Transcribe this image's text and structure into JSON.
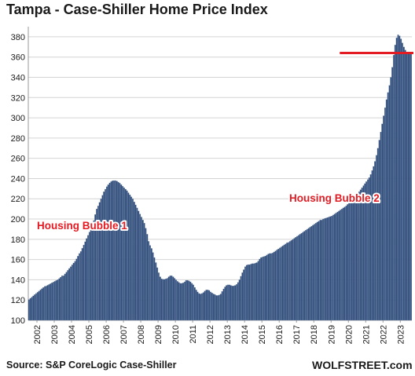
{
  "colors": {
    "bar": "#2d4a78",
    "bar_edge": "#7f95b5",
    "grid": "#d4d4d4",
    "marker_line": "#e31b23",
    "annotation_text": "#e31b23",
    "text": "#1a1a1a"
  },
  "chart_data": {
    "type": "bar",
    "title": "Tampa - Case-Shiller Home Price Index",
    "frequency": "monthly",
    "series_start": "2002-01",
    "ylim": [
      100,
      390
    ],
    "yticks": [
      100,
      120,
      140,
      160,
      180,
      200,
      220,
      240,
      260,
      280,
      300,
      320,
      340,
      360,
      380
    ],
    "xticks": [
      "2002",
      "2003",
      "2004",
      "2005",
      "2006",
      "2007",
      "2008",
      "2009",
      "2010",
      "2011",
      "2012",
      "2013",
      "2014",
      "2015",
      "2016",
      "2017",
      "2018",
      "2019",
      "2020",
      "2021",
      "2022",
      "2023"
    ],
    "grid": true,
    "values": [
      120.5,
      121.7,
      122.9,
      124.1,
      125.3,
      126.5,
      127.7,
      128.9,
      130.1,
      131.3,
      132.4,
      133.5,
      133.8,
      134.6,
      135.4,
      136.2,
      137.0,
      137.8,
      138.6,
      139.4,
      140.2,
      141.2,
      142.6,
      144.0,
      144.0,
      145.8,
      147.6,
      149.4,
      151.2,
      153.0,
      154.8,
      156.6,
      158.4,
      160.7,
      163.4,
      166.0,
      168.0,
      171.2,
      174.4,
      177.6,
      180.8,
      184.0,
      187.2,
      190.4,
      193.6,
      198.5,
      204.5,
      210.0,
      213.0,
      216.5,
      220.0,
      223.5,
      227.0,
      229.5,
      232.0,
      234.0,
      235.7,
      237.0,
      237.8,
      238.0,
      238.0,
      237.5,
      236.5,
      235.5,
      234.0,
      232.5,
      231.0,
      229.5,
      228.0,
      226.0,
      224.0,
      222.0,
      220.0,
      217.0,
      214.0,
      211.0,
      208.0,
      205.0,
      202.0,
      199.0,
      196.0,
      191.0,
      185.0,
      178.0,
      174.0,
      171.0,
      167.0,
      162.0,
      157.0,
      152.0,
      147.0,
      143.0,
      141.0,
      140.5,
      140.5,
      141.0,
      141.5,
      143.0,
      144.0,
      144.0,
      143.0,
      141.5,
      140.0,
      138.5,
      137.5,
      136.5,
      136.5,
      137.0,
      138.0,
      139.5,
      139.5,
      139.0,
      138.0,
      136.5,
      135.0,
      132.5,
      130.0,
      128.0,
      126.5,
      126.0,
      126.5,
      127.5,
      129.0,
      130.0,
      130.0,
      129.5,
      128.0,
      127.0,
      126.0,
      125.5,
      124.5,
      124.5,
      125.0,
      126.0,
      128.5,
      131.0,
      133.0,
      134.5,
      135.0,
      135.0,
      134.5,
      134.0,
      134.0,
      134.5,
      135.5,
      137.5,
      140.0,
      143.5,
      147.0,
      150.0,
      153.0,
      154.5,
      155.0,
      155.0,
      155.5,
      156.0,
      156.0,
      156.5,
      157.0,
      158.5,
      160.5,
      162.0,
      162.5,
      163.0,
      163.5,
      164.5,
      165.5,
      166.0,
      166.0,
      166.5,
      167.5,
      168.5,
      169.5,
      170.5,
      171.5,
      172.5,
      173.5,
      174.5,
      175.5,
      176.5,
      177.0,
      178.0,
      179.0,
      180.0,
      181.0,
      182.0,
      183.0,
      184.0,
      185.0,
      186.0,
      187.0,
      188.0,
      189.0,
      190.0,
      191.0,
      192.0,
      193.0,
      194.0,
      195.0,
      196.0,
      197.0,
      198.0,
      199.0,
      199.0,
      200.0,
      200.5,
      201.0,
      201.5,
      202.0,
      202.5,
      203.0,
      204.0,
      205.0,
      206.0,
      207.0,
      208.0,
      209.0,
      210.0,
      211.0,
      212.0,
      213.0,
      214.5,
      216.0,
      217.5,
      219.0,
      220.5,
      222.0,
      223.5,
      225.0,
      227.0,
      229.0,
      231.0,
      233.0,
      235.0,
      237.0,
      239.0,
      241.0,
      244.0,
      248.0,
      252.0,
      257.0,
      263.0,
      270.0,
      278.0,
      286.0,
      294.0,
      302.0,
      310.0,
      318.0,
      325.0,
      332.0,
      340.0,
      350.0,
      362.0,
      372.0,
      379.0,
      382.0,
      381.0,
      378.0,
      374.0,
      370.0,
      367.0,
      365.0,
      364.0,
      364.0,
      365.0
    ],
    "reference_line": {
      "value": 364,
      "from": "2020-01"
    },
    "annotations": [
      {
        "text": "Housing Bubble 1",
        "at": "2002-07",
        "y": 190
      },
      {
        "text": "Housing Bubble 2",
        "at": "2017-02",
        "y": 217
      }
    ]
  },
  "footer": {
    "source": "Source: S&P CoreLogic Case-Shiller",
    "watermark": "WOLFSTREET.com"
  }
}
